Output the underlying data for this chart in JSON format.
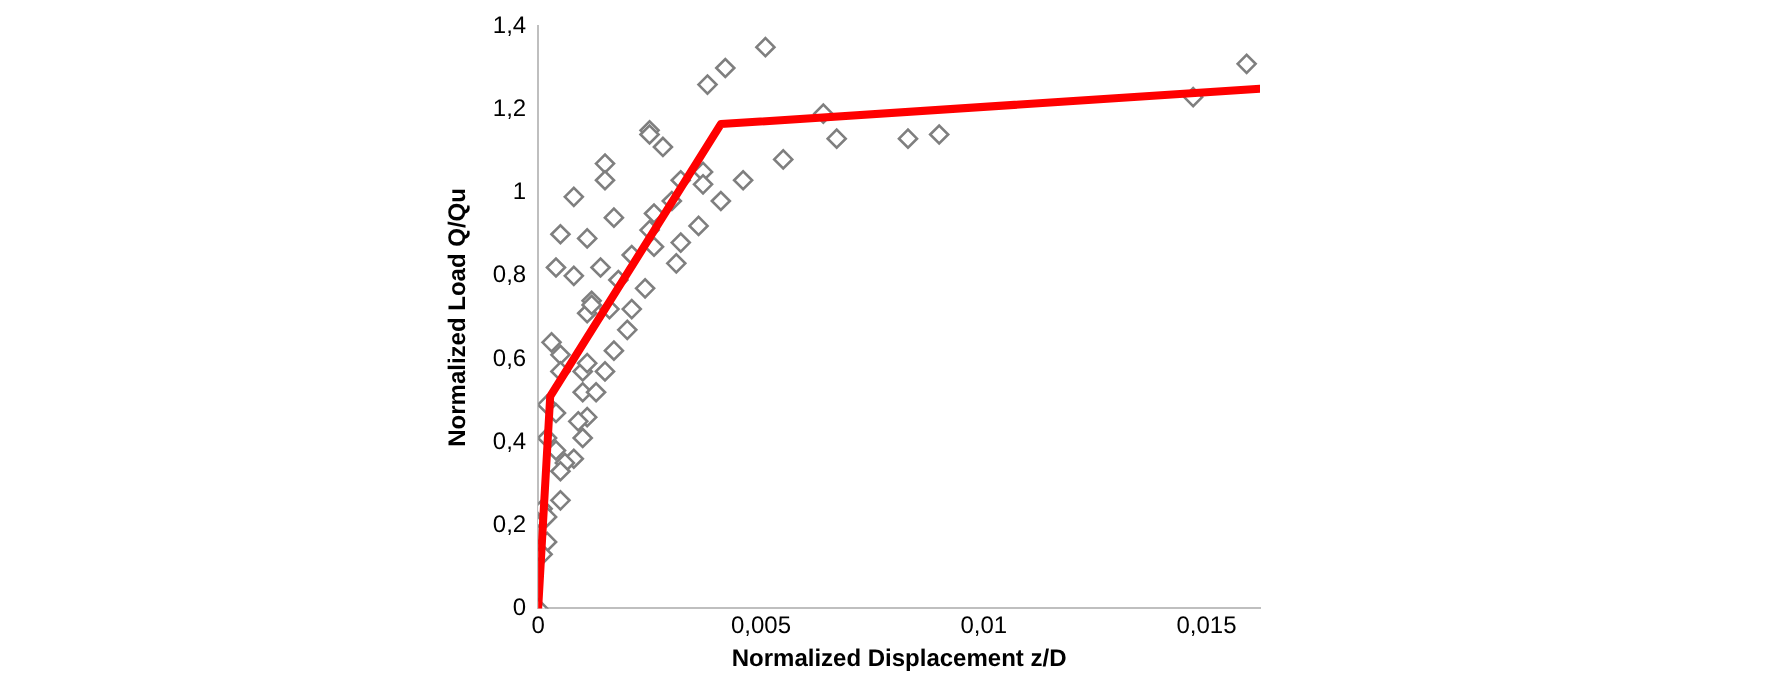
{
  "chart_data": {
    "type": "scatter",
    "xlabel": "Normalized Displacement z/D",
    "ylabel": "Normalized Load Q/Qu",
    "xlim": [
      0,
      0.0162
    ],
    "ylim": [
      0,
      1.4
    ],
    "xticks": [
      0,
      {
        "value": 0.005,
        "label": "0,005"
      },
      {
        "value": 0.01,
        "label": "0,01"
      },
      {
        "value": 0.015,
        "label": "0,015"
      }
    ],
    "yticks": [
      0,
      {
        "value": 0.2,
        "label": "0,2"
      },
      {
        "value": 0.4,
        "label": "0,4"
      },
      {
        "value": 0.6,
        "label": "0,6"
      },
      {
        "value": 0.8,
        "label": "0,8"
      },
      1,
      {
        "value": 1.2,
        "label": "1,2"
      },
      {
        "value": 1.4,
        "label": "1,4"
      }
    ],
    "grid": false,
    "legend": false,
    "series": [
      {
        "type": "scatter",
        "color": "#7f7f7f",
        "marker": "diamond",
        "x": [
          0,
          0.0051,
          0.0042,
          0.0038,
          0.0025,
          0.0055,
          0.0064,
          0.0067,
          0.0083,
          0.009,
          0.0147,
          0.0159,
          0.0004,
          0.0008,
          0.0014,
          0.0005,
          0.0011,
          0.0008,
          0.0017,
          0.0015,
          0.0015,
          0.0025,
          0.0028,
          0.0026,
          0.0025,
          0.0026,
          0.0021,
          0.0024,
          0.0021,
          0.0018,
          0.0012,
          0.0016,
          0.003,
          0.0032,
          0.0037,
          0.0037,
          0.0041,
          0.0036,
          0.0032,
          0.0031,
          0.0046,
          0.0011,
          0.0012,
          0.002,
          0.0017,
          0.0015,
          0.0003,
          0.0005,
          0.0005,
          0.001,
          0.0011,
          0.001,
          0.0013,
          0.0011,
          0.0009,
          0.001,
          0.0002,
          0.0004,
          0.0002,
          0.0004,
          0.0008,
          0.0006,
          0.0005,
          0.0005,
          0.0001,
          0.0001,
          0.0002,
          0.0002,
          0.0001
        ],
        "values": [
          0,
          1.35,
          1.3,
          1.26,
          1.15,
          1.08,
          1.19,
          1.13,
          1.13,
          1.14,
          1.23,
          1.31,
          0.82,
          0.8,
          0.82,
          0.9,
          0.89,
          0.99,
          0.94,
          1.07,
          1.03,
          1.14,
          1.11,
          0.95,
          0.91,
          0.87,
          0.85,
          0.77,
          0.72,
          0.79,
          0.74,
          0.72,
          0.98,
          1.03,
          1.05,
          1.02,
          0.98,
          0.92,
          0.88,
          0.83,
          1.03,
          0.71,
          0.73,
          0.67,
          0.62,
          0.57,
          0.64,
          0.61,
          0.57,
          0.57,
          0.59,
          0.52,
          0.52,
          0.46,
          0.45,
          0.41,
          0.49,
          0.47,
          0.41,
          0.38,
          0.36,
          0.35,
          0.33,
          0.26,
          0.24,
          0.21,
          0.22,
          0.16,
          0.13
        ]
      },
      {
        "type": "line",
        "color": "#ff0000",
        "marker": "none",
        "line_style": "solid",
        "x": [
          0,
          0.00027,
          0.0041,
          0.0162
        ],
        "values": [
          0,
          0.51,
          1.165,
          1.25
        ]
      }
    ]
  }
}
